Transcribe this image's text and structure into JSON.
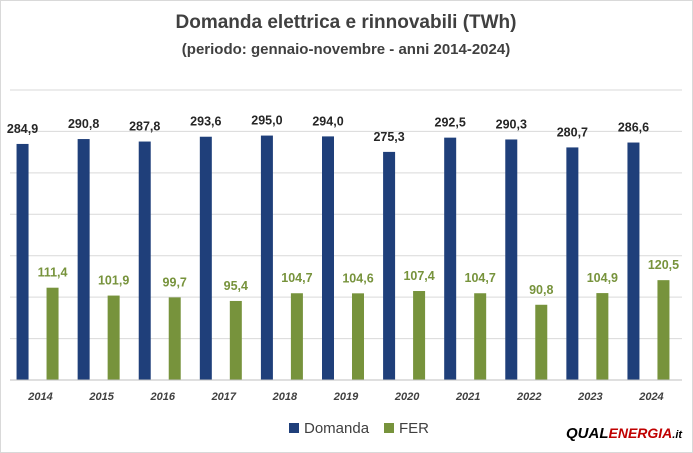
{
  "chart_data": {
    "type": "bar",
    "title": "Domanda elettrica e rinnovabili (TWh)",
    "subtitle": "(periodo: gennaio-novembre - anni 2014-2024)",
    "categories": [
      "2014",
      "2015",
      "2016",
      "2017",
      "2018",
      "2019",
      "2020",
      "2021",
      "2022",
      "2023",
      "2024"
    ],
    "series": [
      {
        "name": "Domanda",
        "color": "#1f3f7a",
        "label_color": "#262626",
        "values": [
          284.9,
          290.8,
          287.8,
          293.6,
          295.0,
          294.0,
          275.3,
          292.5,
          290.3,
          280.7,
          286.6
        ],
        "labels": [
          "284,9",
          "290,8",
          "287,8",
          "293,6",
          "295,0",
          "294,0",
          "275,3",
          "292,5",
          "290,3",
          "280,7",
          "286,6"
        ]
      },
      {
        "name": "FER",
        "color": "#77933c",
        "label_color": "#77933c",
        "values": [
          111.4,
          101.9,
          99.7,
          95.4,
          104.7,
          104.6,
          107.4,
          104.7,
          90.8,
          104.9,
          120.5
        ],
        "labels": [
          "111,4",
          "101,9",
          "99,7",
          "95,4",
          "104,7",
          "104,6",
          "107,4",
          "104,7",
          "90,8",
          "104,9",
          "120,5"
        ]
      }
    ],
    "ylim": [
      0,
      350
    ],
    "y_grid_step": 50,
    "y_tick_labels_shown": false,
    "grid": true,
    "legend_position": "bottom"
  },
  "logo": {
    "text_a": "QUAL",
    "text_b": "ENERGIA",
    "text_c": ".it"
  }
}
